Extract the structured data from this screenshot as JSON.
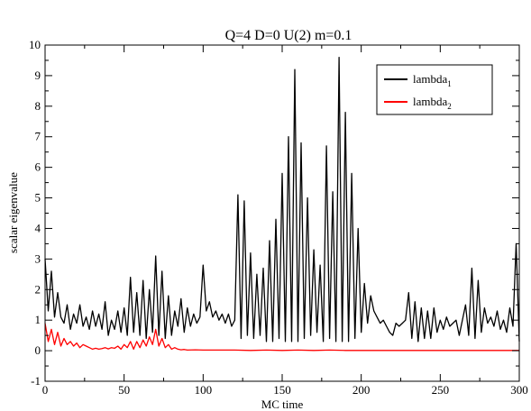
{
  "chart_data": {
    "type": "line",
    "title": "Q=4 D=0 U(2) m=0.1",
    "xlabel": "MC time",
    "ylabel": "scalar eigenvalue",
    "xlim": [
      0,
      300
    ],
    "ylim": [
      -1,
      10
    ],
    "xticks": [
      0,
      50,
      100,
      150,
      200,
      250,
      300
    ],
    "yticks": [
      -1,
      0,
      1,
      2,
      3,
      4,
      5,
      6,
      7,
      8,
      9,
      10
    ],
    "grid": false,
    "legend_position": "top-right",
    "series": [
      {
        "name": "lambda",
        "subscript": "1",
        "color": "#000000",
        "x": [
          0,
          2,
          4,
          6,
          8,
          10,
          12,
          14,
          16,
          18,
          20,
          22,
          24,
          26,
          28,
          30,
          32,
          34,
          36,
          38,
          40,
          42,
          44,
          46,
          48,
          50,
          52,
          54,
          56,
          58,
          60,
          62,
          64,
          66,
          68,
          70,
          72,
          74,
          76,
          78,
          80,
          82,
          84,
          86,
          88,
          90,
          92,
          94,
          96,
          98,
          100,
          102,
          104,
          106,
          108,
          110,
          112,
          114,
          116,
          118,
          120,
          122,
          124,
          126,
          128,
          130,
          132,
          134,
          136,
          138,
          140,
          142,
          144,
          146,
          148,
          150,
          152,
          154,
          156,
          158,
          160,
          162,
          164,
          166,
          168,
          170,
          172,
          174,
          176,
          178,
          180,
          182,
          184,
          186,
          188,
          190,
          192,
          194,
          196,
          198,
          200,
          202,
          204,
          206,
          208,
          210,
          212,
          214,
          216,
          218,
          220,
          222,
          224,
          226,
          228,
          230,
          232,
          234,
          236,
          238,
          240,
          242,
          244,
          246,
          248,
          250,
          252,
          254,
          256,
          258,
          260,
          262,
          264,
          266,
          268,
          270,
          272,
          274,
          276,
          278,
          280,
          282,
          284,
          286,
          288,
          290,
          292,
          294,
          296,
          298,
          300
        ],
        "y": [
          3.0,
          1.3,
          2.6,
          1.1,
          1.9,
          1.1,
          0.9,
          1.5,
          0.7,
          1.2,
          0.9,
          1.5,
          0.8,
          1.1,
          0.7,
          1.3,
          0.8,
          1.2,
          0.7,
          1.6,
          0.5,
          1.0,
          0.7,
          1.3,
          0.6,
          1.4,
          0.5,
          2.4,
          0.6,
          1.9,
          0.5,
          2.3,
          0.4,
          2.0,
          0.6,
          3.1,
          0.5,
          2.6,
          0.4,
          1.8,
          0.5,
          1.3,
          0.8,
          1.7,
          0.6,
          1.4,
          0.8,
          1.2,
          0.9,
          1.1,
          2.8,
          1.3,
          1.6,
          1.1,
          1.3,
          1.0,
          1.2,
          0.9,
          1.2,
          0.8,
          1.0,
          5.1,
          0.4,
          4.9,
          0.5,
          3.2,
          0.4,
          2.5,
          0.5,
          2.7,
          0.3,
          3.6,
          0.3,
          4.3,
          0.4,
          5.8,
          0.3,
          7.0,
          0.3,
          9.2,
          0.3,
          6.8,
          0.4,
          5.0,
          0.5,
          3.3,
          0.6,
          2.8,
          0.3,
          6.7,
          0.4,
          5.2,
          0.3,
          9.6,
          0.3,
          7.8,
          0.3,
          5.8,
          0.4,
          4.0,
          0.6,
          2.2,
          0.9,
          1.8,
          1.3,
          1.1,
          0.9,
          1.0,
          0.8,
          0.6,
          0.5,
          0.9,
          0.8,
          0.9,
          1.0,
          1.9,
          0.4,
          1.6,
          0.3,
          1.4,
          0.4,
          1.3,
          0.4,
          1.4,
          0.6,
          1.0,
          0.7,
          1.1,
          0.8,
          0.9,
          1.0,
          0.5,
          1.0,
          1.5,
          0.5,
          2.7,
          0.4,
          2.3,
          0.6,
          1.4,
          0.9,
          1.1,
          0.8,
          1.3,
          0.7,
          1.0,
          0.6,
          1.4,
          0.8,
          3.5,
          0.3
        ]
      },
      {
        "name": "lambda",
        "subscript": "2",
        "color": "#ff0000",
        "x": [
          0,
          2,
          4,
          6,
          8,
          10,
          12,
          14,
          16,
          18,
          20,
          22,
          24,
          26,
          28,
          30,
          32,
          34,
          36,
          38,
          40,
          42,
          44,
          46,
          48,
          50,
          52,
          54,
          56,
          58,
          60,
          62,
          64,
          66,
          68,
          70,
          72,
          74,
          76,
          78,
          80,
          82,
          84,
          86,
          88,
          90,
          95,
          100,
          110,
          120,
          130,
          140,
          150,
          160,
          170,
          180,
          190,
          200,
          220,
          240,
          260,
          280,
          300
        ],
        "y": [
          0.9,
          0.3,
          0.7,
          0.2,
          0.6,
          0.15,
          0.4,
          0.2,
          0.3,
          0.15,
          0.25,
          0.1,
          0.2,
          0.15,
          0.1,
          0.05,
          0.08,
          0.05,
          0.07,
          0.1,
          0.06,
          0.1,
          0.08,
          0.15,
          0.05,
          0.2,
          0.1,
          0.3,
          0.05,
          0.3,
          0.1,
          0.35,
          0.15,
          0.45,
          0.2,
          0.7,
          0.15,
          0.4,
          0.1,
          0.2,
          0.05,
          0.1,
          0.05,
          0.03,
          0.04,
          0.02,
          0.03,
          0.02,
          0.02,
          0.02,
          0.01,
          0.02,
          0.01,
          0.02,
          0.01,
          0.02,
          0.01,
          0.01,
          0.01,
          0.01,
          0.01,
          0.01,
          0.01
        ]
      }
    ]
  }
}
